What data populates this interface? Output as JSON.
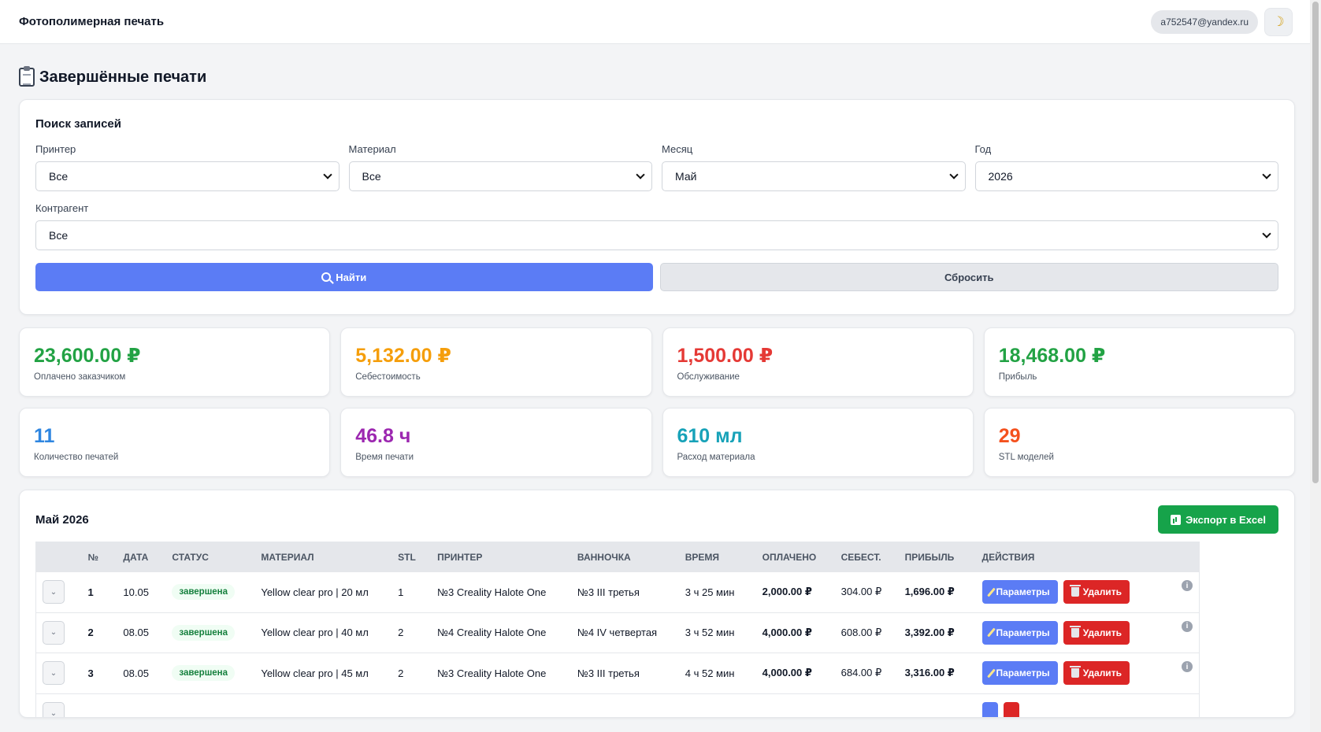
{
  "header": {
    "brand": "Фотополимерная печать",
    "user_email": "a752547@yandex.ru",
    "theme_icon": "moon-icon"
  },
  "page": {
    "title": "Завершённые печати",
    "title_icon": "clipboard-icon"
  },
  "search": {
    "heading": "Поиск записей",
    "printer": {
      "label": "Принтер",
      "value": "Все"
    },
    "material": {
      "label": "Материал",
      "value": "Все"
    },
    "month": {
      "label": "Месяц",
      "value": "Май"
    },
    "year": {
      "label": "Год",
      "value": "2026"
    },
    "counterparty": {
      "label": "Контрагент",
      "value": "Все"
    },
    "find_label": "Найти",
    "reset_label": "Сбросить"
  },
  "stats": {
    "paid": {
      "value": "23,600.00 ₽",
      "label": "Оплачено заказчиком",
      "color": "#22a244"
    },
    "cost": {
      "value": "5,132.00 ₽",
      "label": "Себестоимость",
      "color": "#f59e0b"
    },
    "service": {
      "value": "1,500.00 ₽",
      "label": "Обслуживание",
      "color": "#e53935"
    },
    "profit": {
      "value": "18,468.00 ₽",
      "label": "Прибыль",
      "color": "#22a244"
    },
    "count": {
      "value": "11",
      "label": "Количество печатей",
      "color": "#2f86e0"
    },
    "time": {
      "value": "46.8 ч",
      "label": "Время печати",
      "color": "#9c27b0"
    },
    "material": {
      "value": "610 мл",
      "label": "Расход материала",
      "color": "#17a2b8"
    },
    "stl": {
      "value": "29",
      "label": "STL моделей",
      "color": "#f4511e"
    }
  },
  "table": {
    "title": "Май 2026",
    "export_label": "Экспорт в Excel",
    "columns": [
      "№",
      "Дата",
      "Статус",
      "Материал",
      "STL",
      "Принтер",
      "Ванночка",
      "Время",
      "Оплачено",
      "Себест.",
      "Прибыль",
      "Действия"
    ],
    "params_label": "Параметры",
    "delete_label": "Удалить",
    "rows": [
      {
        "num": "1",
        "date": "10.05",
        "status": "завершена",
        "material": "Yellow clear pro | 20 мл",
        "stl": "1",
        "printer": "№3 Creality Halote One",
        "vat": "№3 III третья",
        "time": "3 ч 25 мин",
        "paid": "2,000.00 ₽",
        "cost": "304.00 ₽",
        "profit": "1,696.00 ₽"
      },
      {
        "num": "2",
        "date": "08.05",
        "status": "завершена",
        "material": "Yellow clear pro | 40 мл",
        "stl": "2",
        "printer": "№4 Creality Halote One",
        "vat": "№4 IV четвертая",
        "time": "3 ч 52 мин",
        "paid": "4,000.00 ₽",
        "cost": "608.00 ₽",
        "profit": "3,392.00 ₽"
      },
      {
        "num": "3",
        "date": "08.05",
        "status": "завершена",
        "material": "Yellow clear pro | 45 мл",
        "stl": "2",
        "printer": "№3 Creality Halote One",
        "vat": "№3 III третья",
        "time": "4 ч 52 мин",
        "paid": "4,000.00 ₽",
        "cost": "684.00 ₽",
        "profit": "3,316.00 ₽"
      },
      {
        "num": "",
        "date": "",
        "status": "",
        "material": "",
        "stl": "",
        "printer": "",
        "vat": "",
        "time": "",
        "paid": "",
        "cost": "",
        "profit": ""
      }
    ]
  }
}
